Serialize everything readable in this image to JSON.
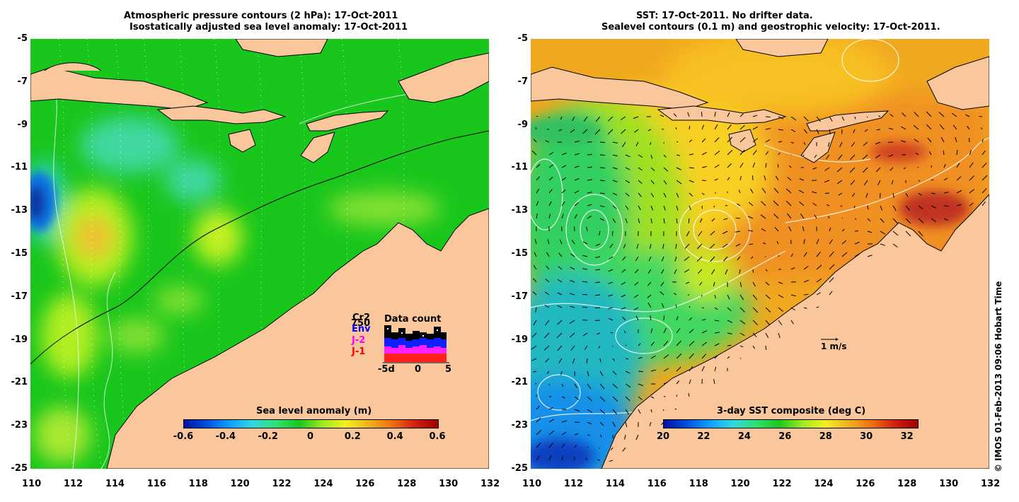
{
  "left_panel": {
    "title_line1": "Atmospheric pressure contours (2 hPa): 17-Oct-2011",
    "title_line2": "Isostatically adjusted sea level anomaly: 17-Oct-2011",
    "colorbar": {
      "title": "Sea level anomaly (m)",
      "labels": [
        "-0.6",
        "-0.4",
        "-0.2",
        "0",
        "0.2",
        "0.4",
        "0.6"
      ],
      "range": [
        -0.6,
        0.6
      ]
    },
    "legend": {
      "cr2": "Cr2",
      "count750": "750",
      "env": "Env",
      "j2": "J-2",
      "j1": "J-1",
      "data_count_title": "Data count",
      "axis_labels": [
        "-5d",
        "0",
        "5"
      ]
    }
  },
  "right_panel": {
    "title_line1": "SST: 17-Oct-2011. No drifter data.",
    "title_line2": "Sealevel contours (0.1 m) and geostrophic velocity: 17-Oct-2011.",
    "colorbar": {
      "title": "3-day SST composite (deg C)",
      "labels": [
        "20",
        "22",
        "24",
        "26",
        "28",
        "30",
        "32"
      ],
      "range": [
        20,
        32.5
      ]
    },
    "velocity_scale": "1 m/s"
  },
  "axes": {
    "lon_ticks": [
      "110",
      "112",
      "114",
      "116",
      "118",
      "120",
      "122",
      "124",
      "126",
      "128",
      "130",
      "132"
    ],
    "lat_ticks": [
      "-5",
      "-7",
      "-9",
      "-11",
      "-13",
      "-15",
      "-17",
      "-19",
      "-21",
      "-23",
      "-25"
    ],
    "lon_range": [
      110,
      132
    ],
    "lat_range": [
      -25,
      -5
    ]
  },
  "credit": "© IMOS 01-Feb-2013 09:06 Hobart Time",
  "colors": {
    "land": "#f9c79b",
    "coast": "#000000",
    "ocean_left_base": "#18c81c",
    "ocean_right_base": "#f0a020"
  }
}
